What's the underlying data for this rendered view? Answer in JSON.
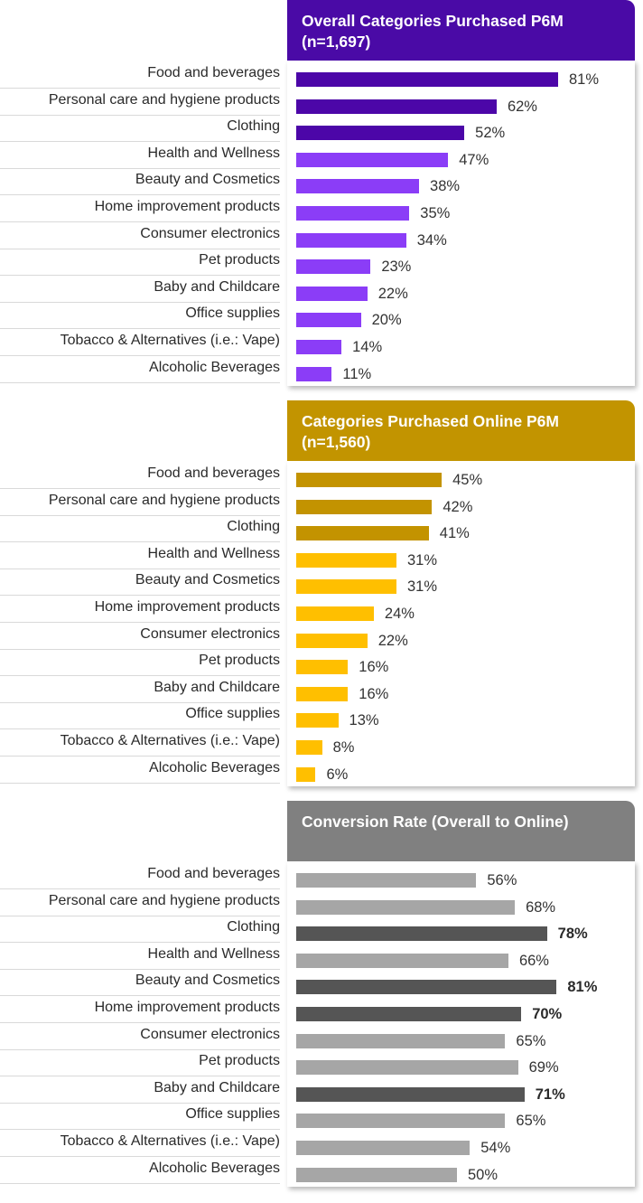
{
  "colors": {
    "purple_header": "#4a0aa6",
    "purple_dark": "#4c06a8",
    "purple_light": "#8b3df7",
    "gold_header": "#c29400",
    "gold_dark": "#c39300",
    "gold_light": "#ffbf00",
    "gray_header": "#808080",
    "gray_dark": "#555555",
    "gray_light": "#a6a6a6"
  },
  "chart_data": [
    {
      "type": "bar",
      "orientation": "horizontal",
      "title": "Overall Categories Purchased P6M (n=1,697)",
      "categories": [
        "Food and beverages",
        "Personal care and hygiene products",
        "Clothing",
        "Health and Wellness",
        "Beauty and Cosmetics",
        "Home improvement products",
        "Consumer electronics",
        "Pet products",
        "Baby and Childcare",
        "Office supplies",
        "Tobacco & Alternatives (i.e.: Vape)",
        "Alcoholic Beverages"
      ],
      "values": [
        81,
        62,
        52,
        47,
        38,
        35,
        34,
        23,
        22,
        20,
        14,
        11
      ],
      "value_labels": [
        "81%",
        "62%",
        "52%",
        "47%",
        "38%",
        "35%",
        "34%",
        "23%",
        "22%",
        "20%",
        "14%",
        "11%"
      ],
      "highlighted": [
        true,
        true,
        true,
        false,
        false,
        false,
        false,
        false,
        false,
        false,
        false,
        false
      ],
      "unit": "%"
    },
    {
      "type": "bar",
      "orientation": "horizontal",
      "title": "Categories Purchased Online P6M (n=1,560)",
      "categories": [
        "Food and beverages",
        "Personal care and hygiene products",
        "Clothing",
        "Health and Wellness",
        "Beauty and Cosmetics",
        "Home improvement products",
        "Consumer electronics",
        "Pet products",
        "Baby and Childcare",
        "Office supplies",
        "Tobacco & Alternatives (i.e.: Vape)",
        "Alcoholic Beverages"
      ],
      "values": [
        45,
        42,
        41,
        31,
        31,
        24,
        22,
        16,
        16,
        13,
        8,
        6
      ],
      "value_labels": [
        "45%",
        "42%",
        "41%",
        "31%",
        "31%",
        "24%",
        "22%",
        "16%",
        "16%",
        "13%",
        "8%",
        "6%"
      ],
      "highlighted": [
        true,
        true,
        true,
        false,
        false,
        false,
        false,
        false,
        false,
        false,
        false,
        false
      ],
      "unit": "%"
    },
    {
      "type": "bar",
      "orientation": "horizontal",
      "title": "Conversion Rate (Overall to Online)",
      "categories": [
        "Food and beverages",
        "Personal care and hygiene products",
        "Clothing",
        "Health and Wellness",
        "Beauty and Cosmetics",
        "Home improvement products",
        "Consumer electronics",
        "Pet products",
        "Baby and Childcare",
        "Office supplies",
        "Tobacco & Alternatives (i.e.: Vape)",
        "Alcoholic Beverages"
      ],
      "values": [
        56,
        68,
        78,
        66,
        81,
        70,
        65,
        69,
        71,
        65,
        54,
        50
      ],
      "value_labels": [
        "56%",
        "68%",
        "78%",
        "66%",
        "81%",
        "70%",
        "65%",
        "69%",
        "71%",
        "65%",
        "54%",
        "50%"
      ],
      "highlighted": [
        false,
        false,
        true,
        false,
        true,
        true,
        false,
        false,
        true,
        false,
        false,
        false
      ],
      "unit": "%"
    }
  ]
}
